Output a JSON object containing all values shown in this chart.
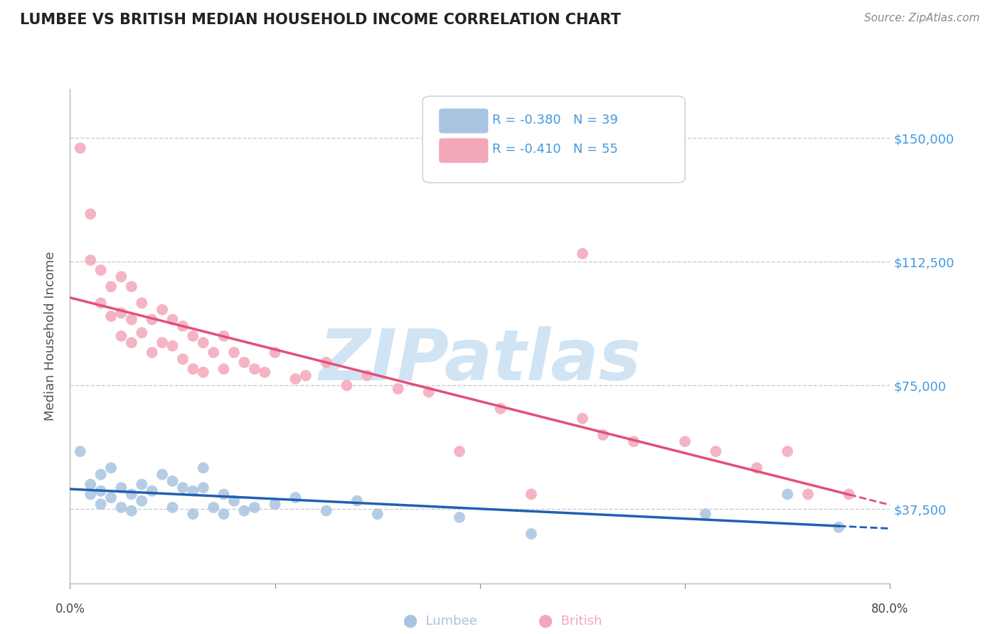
{
  "title": "LUMBEE VS BRITISH MEDIAN HOUSEHOLD INCOME CORRELATION CHART",
  "source": "Source: ZipAtlas.com",
  "ylabel": "Median Household Income",
  "ytick_labels": [
    "$37,500",
    "$75,000",
    "$112,500",
    "$150,000"
  ],
  "ytick_values": [
    37500,
    75000,
    112500,
    150000
  ],
  "ylim": [
    15000,
    165000
  ],
  "xlim": [
    0.0,
    0.8
  ],
  "lumbee_R": -0.38,
  "lumbee_N": 39,
  "british_R": -0.41,
  "british_N": 55,
  "lumbee_color": "#a8c4e0",
  "british_color": "#f4a7b9",
  "lumbee_line_color": "#2060b0",
  "british_line_color": "#e0507a",
  "legend_label_lumbee": "Lumbee",
  "legend_label_british": "British",
  "background_color": "#ffffff",
  "grid_color": "#cccccc",
  "title_color": "#222222",
  "axis_label_color": "#555555",
  "ytick_color": "#4499dd",
  "watermark_text": "ZIPatlas",
  "watermark_color": "#d0e4f4",
  "lumbee_x": [
    0.01,
    0.02,
    0.02,
    0.03,
    0.03,
    0.03,
    0.04,
    0.04,
    0.05,
    0.05,
    0.06,
    0.06,
    0.07,
    0.07,
    0.08,
    0.09,
    0.1,
    0.1,
    0.11,
    0.12,
    0.12,
    0.13,
    0.13,
    0.14,
    0.15,
    0.15,
    0.16,
    0.17,
    0.18,
    0.2,
    0.22,
    0.25,
    0.28,
    0.3,
    0.38,
    0.45,
    0.62,
    0.7,
    0.75
  ],
  "lumbee_y": [
    55000,
    45000,
    42000,
    48000,
    43000,
    39000,
    50000,
    41000,
    44000,
    38000,
    42000,
    37000,
    45000,
    40000,
    43000,
    48000,
    46000,
    38000,
    44000,
    43000,
    36000,
    50000,
    44000,
    38000,
    42000,
    36000,
    40000,
    37000,
    38000,
    39000,
    41000,
    37000,
    40000,
    36000,
    35000,
    30000,
    36000,
    42000,
    32000
  ],
  "british_x": [
    0.01,
    0.02,
    0.02,
    0.03,
    0.03,
    0.04,
    0.04,
    0.05,
    0.05,
    0.05,
    0.06,
    0.06,
    0.06,
    0.07,
    0.07,
    0.08,
    0.08,
    0.09,
    0.09,
    0.1,
    0.1,
    0.11,
    0.11,
    0.12,
    0.12,
    0.13,
    0.13,
    0.14,
    0.15,
    0.15,
    0.16,
    0.17,
    0.18,
    0.19,
    0.2,
    0.22,
    0.23,
    0.25,
    0.27,
    0.29,
    0.32,
    0.35,
    0.38,
    0.42,
    0.45,
    0.5,
    0.52,
    0.55,
    0.6,
    0.63,
    0.67,
    0.7,
    0.72,
    0.76,
    0.5
  ],
  "british_y": [
    147000,
    127000,
    113000,
    110000,
    100000,
    105000,
    96000,
    108000,
    97000,
    90000,
    105000,
    95000,
    88000,
    100000,
    91000,
    95000,
    85000,
    98000,
    88000,
    95000,
    87000,
    93000,
    83000,
    90000,
    80000,
    88000,
    79000,
    85000,
    90000,
    80000,
    85000,
    82000,
    80000,
    79000,
    85000,
    77000,
    78000,
    82000,
    75000,
    78000,
    74000,
    73000,
    55000,
    68000,
    42000,
    65000,
    60000,
    58000,
    58000,
    55000,
    50000,
    55000,
    42000,
    42000,
    115000
  ]
}
